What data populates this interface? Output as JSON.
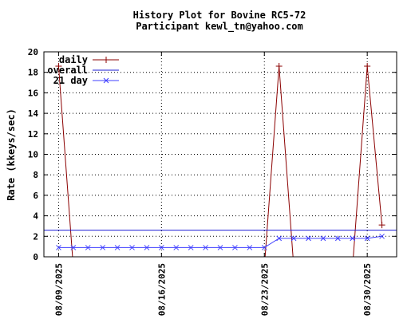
{
  "chart_data": {
    "type": "line",
    "title": "History Plot for Bovine RC5-72",
    "subtitle": "Participant kewl_tn@yahoo.com",
    "xlabel": "",
    "ylabel": "Rate (kkeys/sec)",
    "ylim": [
      0,
      20
    ],
    "yticks": [
      0,
      2,
      4,
      6,
      8,
      10,
      12,
      14,
      16,
      18,
      20
    ],
    "xlim": [
      "2025-08-08",
      "2025-09-01"
    ],
    "xticks": [
      "08/09/2025",
      "08/16/2025",
      "08/23/2025",
      "08/30/2025"
    ],
    "grid": true,
    "legend_position": "top-left",
    "colors": {
      "daily": "#8b0000",
      "overall": "#1c1cd6",
      "21day": "#4040ff"
    },
    "series": [
      {
        "name": "daily",
        "points": [
          {
            "x": "2025-08-09",
            "y": 18.6
          },
          {
            "x": "2025-08-10",
            "y": -1
          },
          {
            "x": "2025-08-23",
            "y": -1
          },
          {
            "x": "2025-08-24",
            "y": 18.6
          },
          {
            "x": "2025-08-25",
            "y": -1
          },
          {
            "x": "2025-08-29",
            "y": -1
          },
          {
            "x": "2025-08-30",
            "y": 18.6
          },
          {
            "x": "2025-08-31",
            "y": 3.1
          }
        ]
      },
      {
        "name": "overall",
        "points": [
          {
            "x": "2025-08-08",
            "y": 2.6
          },
          {
            "x": "2025-09-01",
            "y": 2.6
          }
        ]
      },
      {
        "name": "21 day",
        "points": [
          {
            "x": "2025-08-09",
            "y": 0.9
          },
          {
            "x": "2025-08-10",
            "y": 0.9
          },
          {
            "x": "2025-08-11",
            "y": 0.9
          },
          {
            "x": "2025-08-12",
            "y": 0.9
          },
          {
            "x": "2025-08-13",
            "y": 0.9
          },
          {
            "x": "2025-08-14",
            "y": 0.9
          },
          {
            "x": "2025-08-15",
            "y": 0.9
          },
          {
            "x": "2025-08-16",
            "y": 0.9
          },
          {
            "x": "2025-08-17",
            "y": 0.9
          },
          {
            "x": "2025-08-18",
            "y": 0.9
          },
          {
            "x": "2025-08-19",
            "y": 0.9
          },
          {
            "x": "2025-08-20",
            "y": 0.9
          },
          {
            "x": "2025-08-21",
            "y": 0.9
          },
          {
            "x": "2025-08-22",
            "y": 0.9
          },
          {
            "x": "2025-08-23",
            "y": 0.9
          },
          {
            "x": "2025-08-24",
            "y": 1.8
          },
          {
            "x": "2025-08-25",
            "y": 1.8
          },
          {
            "x": "2025-08-26",
            "y": 1.8
          },
          {
            "x": "2025-08-27",
            "y": 1.8
          },
          {
            "x": "2025-08-28",
            "y": 1.8
          },
          {
            "x": "2025-08-29",
            "y": 1.8
          },
          {
            "x": "2025-08-30",
            "y": 1.8
          },
          {
            "x": "2025-08-31",
            "y": 2.0
          }
        ]
      }
    ]
  }
}
